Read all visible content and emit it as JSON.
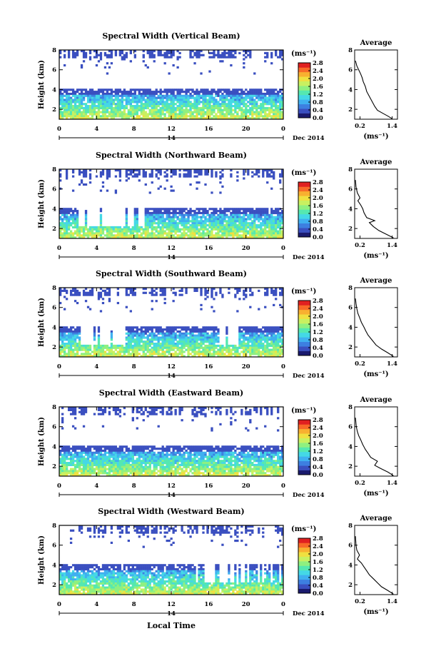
{
  "figure": {
    "xlabel": "Local Time"
  },
  "chart_data": [
    {
      "type": "heatmap",
      "title": "Spectral Width (Vertical Beam)",
      "ylabel": "Height (km)",
      "x_ticks": [
        "0",
        "4",
        "8",
        "12",
        "16",
        "20",
        "0"
      ],
      "date_day": "14",
      "date_label": "Dec 2014",
      "xlim": [
        0,
        24
      ],
      "ylim": [
        1,
        8
      ],
      "y_ticks": [
        "2",
        "4",
        "6",
        "8"
      ],
      "colorbar": {
        "unit": "(ms⁻¹)",
        "ticks": [
          "0.0",
          "0.4",
          "0.8",
          "1.2",
          "1.6",
          "2.0",
          "2.4",
          "2.8"
        ],
        "range": [
          0.0,
          2.8
        ]
      },
      "average": {
        "title": "Average",
        "xlabel": "(ms⁻¹)",
        "x_ticks": [
          "0.2",
          "1.4"
        ],
        "xlim": [
          0.0,
          1.6
        ],
        "y_ticks": [
          "2",
          "4",
          "6",
          "8"
        ],
        "ylim": [
          1,
          8
        ],
        "profile": [
          [
            1.4,
            1.05
          ],
          [
            1.25,
            1.3
          ],
          [
            1.05,
            1.6
          ],
          [
            0.85,
            1.9
          ],
          [
            0.75,
            2.3
          ],
          [
            0.65,
            2.8
          ],
          [
            0.55,
            3.3
          ],
          [
            0.45,
            3.8
          ],
          [
            0.4,
            4.3
          ],
          [
            0.32,
            4.8
          ],
          [
            0.28,
            5.2
          ],
          [
            0.22,
            5.6
          ],
          [
            0.15,
            6.0
          ],
          [
            0.08,
            6.4
          ],
          [
            0.03,
            6.9
          ]
        ]
      }
    },
    {
      "type": "heatmap",
      "title": "Spectral Width (Northward Beam)",
      "ylabel": "Height (km)",
      "x_ticks": [
        "0",
        "4",
        "8",
        "12",
        "16",
        "20",
        "0"
      ],
      "date_day": "14",
      "date_label": "Dec 2014",
      "xlim": [
        0,
        24
      ],
      "ylim": [
        1,
        8
      ],
      "y_ticks": [
        "2",
        "4",
        "6",
        "8"
      ],
      "colorbar": {
        "unit": "(ms⁻¹)",
        "ticks": [
          "0.0",
          "0.4",
          "0.8",
          "1.2",
          "1.6",
          "2.0",
          "2.4",
          "2.8"
        ],
        "range": [
          0.0,
          2.8
        ]
      },
      "average": {
        "title": "Average",
        "xlabel": "(ms⁻¹)",
        "x_ticks": [
          "0.2",
          "1.4"
        ],
        "xlim": [
          0.0,
          1.6
        ],
        "y_ticks": [
          "2",
          "4",
          "6",
          "8"
        ],
        "ylim": [
          1,
          8
        ],
        "profile": [
          [
            1.45,
            1.05
          ],
          [
            1.2,
            1.4
          ],
          [
            0.9,
            1.8
          ],
          [
            0.7,
            2.2
          ],
          [
            0.55,
            2.6
          ],
          [
            0.75,
            2.8
          ],
          [
            0.45,
            3.1
          ],
          [
            0.35,
            3.6
          ],
          [
            0.3,
            4.0
          ],
          [
            0.22,
            4.4
          ],
          [
            0.12,
            4.8
          ],
          [
            0.2,
            5.1
          ],
          [
            0.1,
            5.6
          ],
          [
            0.05,
            6.2
          ],
          [
            0.03,
            6.9
          ]
        ]
      }
    },
    {
      "type": "heatmap",
      "title": "Spectral Width (Southward Beam)",
      "ylabel": "Height (km)",
      "x_ticks": [
        "0",
        "4",
        "8",
        "12",
        "16",
        "20",
        "0"
      ],
      "date_day": "14",
      "date_label": "Dec 2014",
      "xlim": [
        0,
        24
      ],
      "ylim": [
        1,
        8
      ],
      "y_ticks": [
        "2",
        "4",
        "6",
        "8"
      ],
      "colorbar": {
        "unit": "(ms⁻¹)",
        "ticks": [
          "0.0",
          "0.4",
          "0.8",
          "1.2",
          "1.6",
          "2.0",
          "2.4",
          "2.8"
        ],
        "range": [
          0.0,
          2.8
        ]
      },
      "average": {
        "title": "Average",
        "xlabel": "(ms⁻¹)",
        "x_ticks": [
          "0.2",
          "1.4"
        ],
        "xlim": [
          0.0,
          1.6
        ],
        "y_ticks": [
          "2",
          "4",
          "6",
          "8"
        ],
        "ylim": [
          1,
          8
        ],
        "profile": [
          [
            1.45,
            1.05
          ],
          [
            1.25,
            1.4
          ],
          [
            1.0,
            1.8
          ],
          [
            0.8,
            2.2
          ],
          [
            0.65,
            2.7
          ],
          [
            0.5,
            3.2
          ],
          [
            0.42,
            3.6
          ],
          [
            0.35,
            4.0
          ],
          [
            0.25,
            4.5
          ],
          [
            0.18,
            5.0
          ],
          [
            0.12,
            5.4
          ],
          [
            0.08,
            5.9
          ],
          [
            0.05,
            6.4
          ],
          [
            0.03,
            6.9
          ]
        ]
      }
    },
    {
      "type": "heatmap",
      "title": "Spectral Width (Eastward Beam)",
      "ylabel": "Height (km)",
      "x_ticks": [
        "0",
        "4",
        "8",
        "12",
        "16",
        "20",
        "0"
      ],
      "date_day": "14",
      "date_label": "Dec 2014",
      "xlim": [
        0,
        24
      ],
      "ylim": [
        1,
        8
      ],
      "y_ticks": [
        "2",
        "4",
        "6",
        "8"
      ],
      "colorbar": {
        "unit": "(ms⁻¹)",
        "ticks": [
          "0.0",
          "0.4",
          "0.8",
          "1.2",
          "1.6",
          "2.0",
          "2.4",
          "2.8"
        ],
        "range": [
          0.0,
          2.8
        ]
      },
      "average": {
        "title": "Average",
        "xlabel": "(ms⁻¹)",
        "x_ticks": [
          "0.2",
          "1.4"
        ],
        "xlim": [
          0.0,
          1.6
        ],
        "y_ticks": [
          "2",
          "4",
          "6",
          "8"
        ],
        "ylim": [
          1,
          8
        ],
        "profile": [
          [
            1.45,
            1.05
          ],
          [
            1.25,
            1.4
          ],
          [
            0.95,
            1.8
          ],
          [
            0.75,
            2.1
          ],
          [
            0.85,
            2.5
          ],
          [
            0.6,
            2.9
          ],
          [
            0.5,
            3.3
          ],
          [
            0.4,
            3.7
          ],
          [
            0.3,
            4.2
          ],
          [
            0.22,
            4.7
          ],
          [
            0.15,
            5.1
          ],
          [
            0.1,
            5.5
          ],
          [
            0.06,
            6.0
          ],
          [
            0.03,
            6.9
          ]
        ]
      }
    },
    {
      "type": "heatmap",
      "title": "Spectral Width (Westward Beam)",
      "ylabel": "Height (km)",
      "x_ticks": [
        "0",
        "4",
        "8",
        "12",
        "16",
        "20",
        "0"
      ],
      "date_day": "14",
      "date_label": "Dec 2014",
      "xlim": [
        0,
        24
      ],
      "ylim": [
        1,
        8
      ],
      "y_ticks": [
        "2",
        "4",
        "6",
        "8"
      ],
      "colorbar": {
        "unit": "(ms⁻¹)",
        "ticks": [
          "0.0",
          "0.4",
          "0.8",
          "1.2",
          "1.6",
          "2.0",
          "2.4",
          "2.8"
        ],
        "range": [
          0.0,
          2.8
        ]
      },
      "average": {
        "title": "Average",
        "xlabel": "(ms⁻¹)",
        "x_ticks": [
          "0.2",
          "1.4"
        ],
        "xlim": [
          0.0,
          1.6
        ],
        "y_ticks": [
          "2",
          "4",
          "6",
          "8"
        ],
        "ylim": [
          1,
          8
        ],
        "profile": [
          [
            1.45,
            1.05
          ],
          [
            1.25,
            1.4
          ],
          [
            1.0,
            1.8
          ],
          [
            0.85,
            2.2
          ],
          [
            0.7,
            2.6
          ],
          [
            0.55,
            3.0
          ],
          [
            0.45,
            3.4
          ],
          [
            0.35,
            3.8
          ],
          [
            0.25,
            4.2
          ],
          [
            0.1,
            4.6
          ],
          [
            0.18,
            5.0
          ],
          [
            0.08,
            5.5
          ],
          [
            0.05,
            6.0
          ],
          [
            0.03,
            6.9
          ]
        ]
      }
    }
  ],
  "colormap": [
    "#1a1a6e",
    "#3a4fc0",
    "#3d7fe0",
    "#3fb0f0",
    "#44d8e6",
    "#55e8b0",
    "#8ff080",
    "#c9f060",
    "#f0e040",
    "#f8b030",
    "#f86a28",
    "#e02020"
  ]
}
